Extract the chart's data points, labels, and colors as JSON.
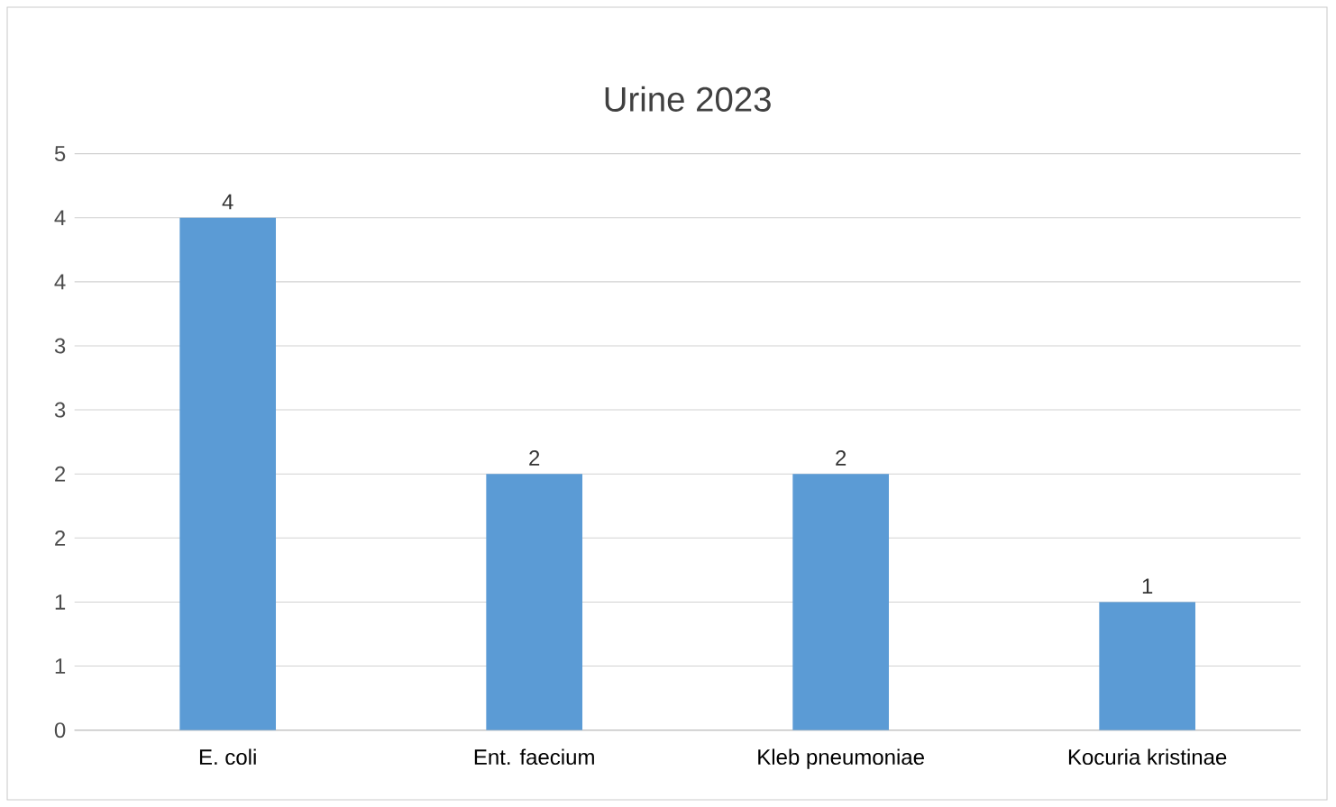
{
  "chart_data": {
    "type": "bar",
    "title": "Urine 2023",
    "categories": [
      "E. coli",
      "Ent. faecium",
      "Kleb pneumoniae",
      "Kocuria kristinae"
    ],
    "values": [
      4,
      2,
      2,
      1
    ],
    "color": "#5b9bd5",
    "data_labels": true,
    "ylim": [
      0,
      4.5
    ],
    "yticks": [
      0,
      {
        "value": 0.5,
        "label": "1"
      },
      1,
      {
        "value": 1.5,
        "label": "2"
      },
      2,
      {
        "value": 2.5,
        "label": "3"
      },
      3,
      {
        "value": 3.5,
        "label": "4"
      },
      4,
      {
        "value": 4.5,
        "label": "5"
      }
    ],
    "grid": "y"
  }
}
